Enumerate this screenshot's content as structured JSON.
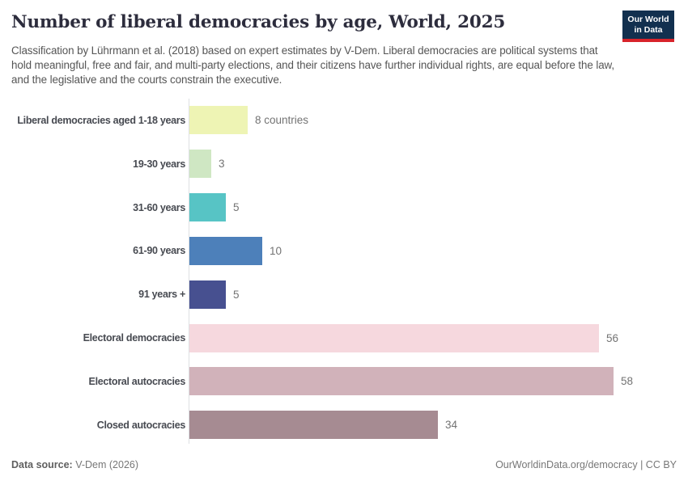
{
  "header": {
    "title": "Number of liberal democracies by age, World, 2025",
    "subtitle": "Classification by Lührmann et al. (2018) based on expert estimates by V-Dem. Liberal democracies are political systems that hold meaningful, free and fair, and multi-party elections, and their citizens have further individual rights, are equal before the law, and the legislative and the courts constrain the executive.",
    "logo": {
      "line1": "Our World",
      "line2": "in Data",
      "bg_color": "#12304f",
      "accent_color": "#d8232a"
    }
  },
  "chart_data": {
    "type": "bar",
    "orientation": "horizontal",
    "title": "Number of liberal democracies by age, World, 2025",
    "categories": [
      "Liberal democracies aged 1-18 years",
      "19-30 years",
      "31-60 years",
      "61-90 years",
      "91 years +",
      "Electoral democracies",
      "Electoral autocracies",
      "Closed autocracies"
    ],
    "values": [
      8,
      3,
      5,
      10,
      5,
      56,
      58,
      34
    ],
    "value_labels": [
      "8 countries",
      "3",
      "5",
      "10",
      "5",
      "56",
      "58",
      "34"
    ],
    "bar_colors": [
      "#eef4b4",
      "#cfe7c3",
      "#57c4c5",
      "#4d80ba",
      "#475090",
      "#f6d8de",
      "#d1b2ba",
      "#a68b92"
    ],
    "xlim": [
      0,
      58
    ],
    "grid": false,
    "legend": "none",
    "axis_color": "#dde0e3"
  },
  "footer": {
    "source_label": "Data source:",
    "source_value": " V-Dem (2026)",
    "link": "OurWorldinData.org/democracy | CC BY"
  }
}
